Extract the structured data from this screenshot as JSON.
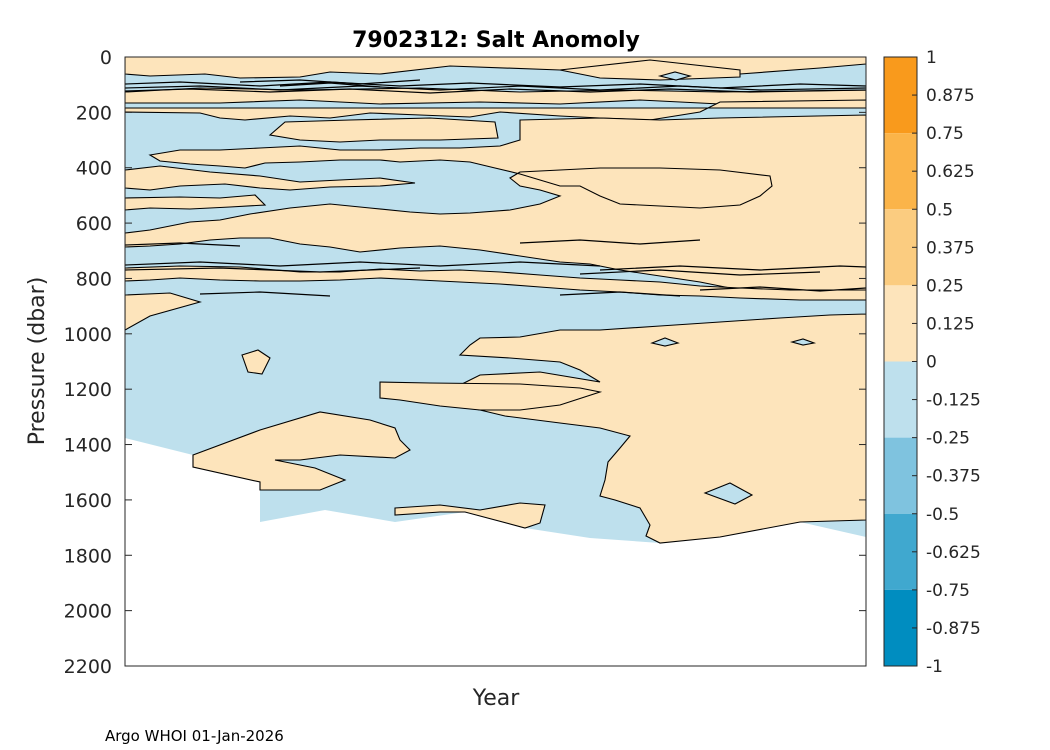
{
  "chart_data": {
    "type": "heatmap",
    "title": "7902312: Salt Anomoly",
    "xlabel": "Year",
    "ylabel": "Pressure (dbar)",
    "yticks": [
      0,
      200,
      400,
      600,
      800,
      1000,
      1200,
      1400,
      1600,
      1800,
      2000,
      2200
    ],
    "ylim": [
      0,
      2200
    ],
    "y_reversed": true,
    "xticks": [],
    "colorbar": {
      "ticks": [
        "1",
        "0.875",
        "0.75",
        "0.625",
        "0.5",
        "0.375",
        "0.25",
        "0.125",
        "0",
        "-0.125",
        "-0.25",
        "-0.375",
        "-0.5",
        "-0.625",
        "-0.75",
        "-0.875",
        "-1"
      ],
      "range": [
        -1,
        1
      ],
      "bands": [
        {
          "from": 0.75,
          "to": 1.0,
          "color": "#F99A1C"
        },
        {
          "from": 0.5,
          "to": 0.75,
          "color": "#FBB449"
        },
        {
          "from": 0.25,
          "to": 0.5,
          "color": "#FBCC80"
        },
        {
          "from": 0.0,
          "to": 0.25,
          "color": "#FDE4BB"
        },
        {
          "from": -0.25,
          "to": 0.0,
          "color": "#BEE0ED"
        },
        {
          "from": -0.5,
          "to": -0.25,
          "color": "#7FC3DF"
        },
        {
          "from": -0.75,
          "to": -0.5,
          "color": "#40A8CF"
        },
        {
          "from": -1.0,
          "to": -0.75,
          "color": "#008DC0"
        }
      ]
    },
    "field_levels": {
      "positive": "0 to 0.25",
      "negative": "-0.25 to 0"
    },
    "max_depth_approx_dbar": 1750
  },
  "footer": "Argo WHOI 01-Jan-2026"
}
